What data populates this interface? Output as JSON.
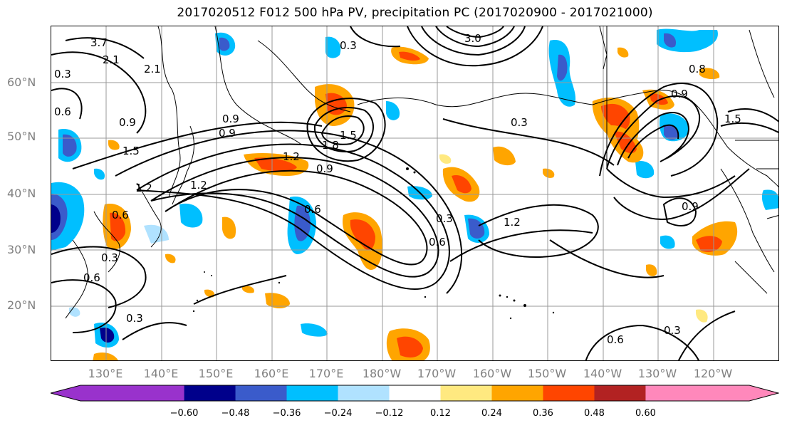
{
  "title": "2017020512 F012 500 hPa PV, precipitation PC (2017020900 - 2017021000)",
  "lat_labels": [
    "60°N",
    "50°N",
    "40°N",
    "30°N",
    "20°N"
  ],
  "lon_labels": [
    "130°E",
    "140°E",
    "150°E",
    "160°E",
    "170°E",
    "180°W",
    "170°W",
    "160°W",
    "150°W",
    "140°W",
    "130°W",
    "120°W"
  ],
  "colorbar": {
    "ticks": [
      "−0.60",
      "−0.48",
      "−0.36",
      "−0.24",
      "−0.12",
      "0.12",
      "0.24",
      "0.36",
      "0.48",
      "0.60"
    ],
    "colors": [
      "#9932CC",
      "#00008B",
      "#3A5BCB",
      "#00BFFF",
      "#B0E2FF",
      "#FFFFFF",
      "#FFE980",
      "#FFA500",
      "#FF4500",
      "#B22222",
      "#FF88BB"
    ]
  },
  "contour_labels": [
    "3.7",
    "2.1",
    "0.3",
    "0.9",
    "0.6",
    "1.5",
    "1.2",
    "1.8",
    "1.2",
    "0.9",
    "0.3",
    "0.6",
    "1.2",
    "0.3",
    "0.9",
    "1.5",
    "0.9",
    "1.2",
    "0.6",
    "0.9",
    "0.3",
    "0.6",
    "0.3",
    "0.8",
    "2.1",
    "0.3",
    "0.6",
    "3.0",
    "0.6",
    "0.3",
    "0.9",
    "1.5"
  ]
}
